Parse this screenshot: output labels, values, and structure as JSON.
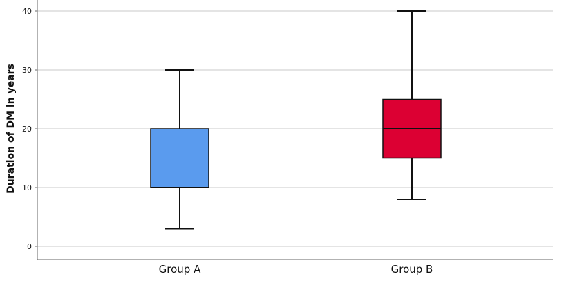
{
  "chart_data": {
    "type": "boxplot",
    "ylabel": "Duration of DM in years",
    "ylim": [
      0,
      40
    ],
    "yticks": [
      "0",
      "10",
      "20",
      "30",
      "40"
    ],
    "grid": "horizontal",
    "categories": [
      "Group A",
      "Group B"
    ],
    "boxes": [
      {
        "category": "Group A",
        "min": 3,
        "q1": 10,
        "median": 10,
        "q3": 20,
        "max": 30,
        "color": "#5a9bee"
      },
      {
        "category": "Group B",
        "min": 8,
        "q1": 15,
        "median": 20,
        "q3": 25,
        "max": 40,
        "color": "#dc0033"
      }
    ]
  }
}
